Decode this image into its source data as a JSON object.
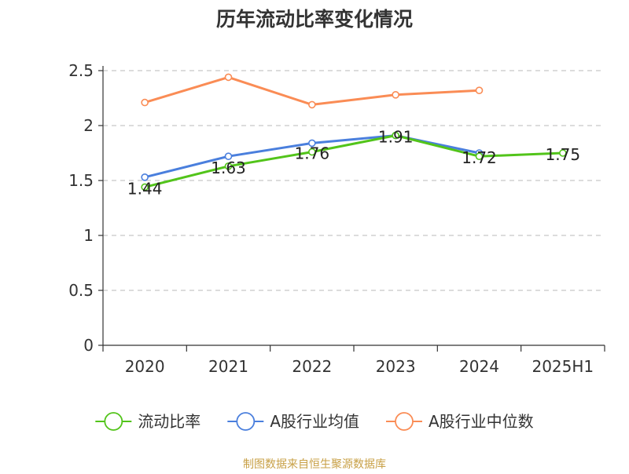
{
  "chart_data": {
    "type": "line",
    "title": "历年流动比率变化情况",
    "categories": [
      "2020",
      "2021",
      "2022",
      "2023",
      "2024",
      "2025H1"
    ],
    "yticks": [
      "0",
      "0.5",
      "1",
      "1.5",
      "2",
      "2.5"
    ],
    "ylim": [
      0,
      2.5
    ],
    "grid": true,
    "legend_position": "bottom",
    "series": [
      {
        "name": "流动比率",
        "color": "#52c41a",
        "values": [
          1.44,
          1.63,
          1.76,
          1.91,
          1.72,
          1.75
        ],
        "labels": [
          "1.44",
          "1.63",
          "1.76",
          "1.91",
          "1.72",
          "1.75"
        ]
      },
      {
        "name": "A股行业均值",
        "color": "#4a7fdd",
        "values": [
          1.53,
          1.72,
          1.84,
          1.91,
          1.75,
          null
        ]
      },
      {
        "name": "A股行业中位数",
        "color": "#fa8c55",
        "values": [
          2.21,
          2.44,
          2.19,
          2.28,
          2.32,
          null
        ]
      }
    ]
  },
  "footer": {
    "source": "制图数据来自恒生聚源数据库"
  }
}
